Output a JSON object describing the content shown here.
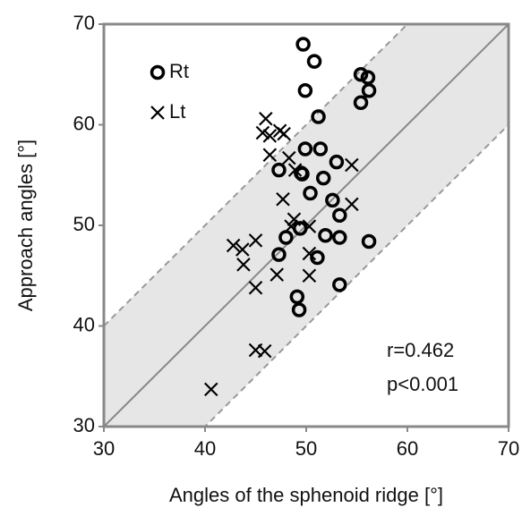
{
  "chart_data": {
    "type": "scatter",
    "x_label": "Angles of the sphenoid ridge [°]",
    "y_label": "Approach angles [°]",
    "xlim": [
      30,
      70
    ],
    "ylim": [
      30,
      70
    ],
    "xticks": [
      30,
      40,
      50,
      60,
      70
    ],
    "yticks": [
      30,
      40,
      50,
      60,
      70
    ],
    "band_offset": 10,
    "legend": "upper left",
    "annotations": [
      "r=0.462",
      "p<0.001"
    ],
    "series": [
      {
        "name": "Rt",
        "marker": "circle",
        "color": "#000000",
        "x": [
          49.7,
          50.8,
          49.9,
          55.4,
          56.1,
          56.2,
          55.4,
          51.2,
          49.9,
          51.4,
          47.3,
          49.5,
          49.6,
          51.7,
          53.0,
          50.4,
          52.6,
          53.3,
          49.4,
          48.0,
          51.9,
          53.3,
          56.2,
          47.3,
          51.1,
          53.3,
          49.1,
          49.3
        ],
        "values": [
          68.0,
          66.3,
          63.4,
          65.0,
          64.7,
          63.4,
          62.2,
          60.8,
          57.6,
          57.6,
          55.5,
          55.2,
          55.1,
          54.7,
          56.3,
          53.2,
          52.5,
          51.0,
          49.7,
          48.8,
          49.0,
          48.8,
          48.4,
          47.1,
          46.8,
          44.1,
          42.9,
          41.6
        ]
      },
      {
        "name": "Lt",
        "marker": "x",
        "color": "#000000",
        "x": [
          46.0,
          45.7,
          46.4,
          47.4,
          47.8,
          46.4,
          48.3,
          48.9,
          54.5,
          47.7,
          54.5,
          48.8,
          48.5,
          50.3,
          42.8,
          43.7,
          45.0,
          43.8,
          45.0,
          47.1,
          50.3,
          50.3,
          45.0,
          45.9,
          40.6
        ],
        "values": [
          60.6,
          59.2,
          58.9,
          59.4,
          59.1,
          57.0,
          56.7,
          55.5,
          56.0,
          52.6,
          52.1,
          50.6,
          49.9,
          49.9,
          48.0,
          47.6,
          48.5,
          46.1,
          43.8,
          45.1,
          45.0,
          47.2,
          37.6,
          37.5,
          33.7
        ]
      }
    ]
  }
}
